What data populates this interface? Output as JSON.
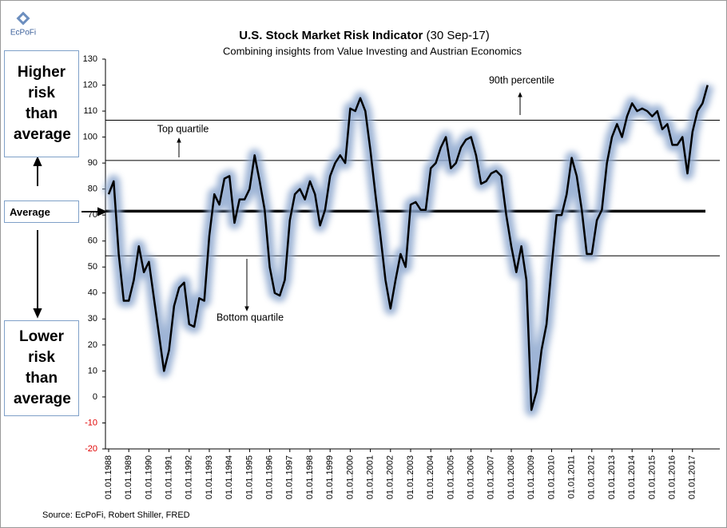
{
  "chart_data": {
    "type": "line",
    "title": "U.S. Stock Market Risk Indicator",
    "title_suffix": "(30 Sep-17)",
    "subtitle": "Combining insights from Value Investing and Austrian Economics",
    "logo": "EcPoFi",
    "source": "Source: EcPoFi,  Robert Shiller, FRED",
    "side_labels": {
      "higher": "Higher risk than average",
      "average": "Average",
      "lower": "Lower risk than average"
    },
    "x": [
      1988,
      1988.25,
      1988.5,
      1988.75,
      1989,
      1989.25,
      1989.5,
      1989.75,
      1990,
      1990.25,
      1990.5,
      1990.75,
      1991,
      1991.25,
      1991.5,
      1991.75,
      1992,
      1992.25,
      1992.5,
      1992.75,
      1993,
      1993.25,
      1993.5,
      1993.75,
      1994,
      1994.25,
      1994.5,
      1994.75,
      1995,
      1995.25,
      1995.5,
      1995.75,
      1996,
      1996.25,
      1996.5,
      1996.75,
      1997,
      1997.25,
      1997.5,
      1997.75,
      1998,
      1998.25,
      1998.5,
      1998.75,
      1999,
      1999.25,
      1999.5,
      1999.75,
      2000,
      2000.25,
      2000.5,
      2000.75,
      2001,
      2001.25,
      2001.5,
      2001.75,
      2002,
      2002.25,
      2002.5,
      2002.75,
      2003,
      2003.25,
      2003.5,
      2003.75,
      2004,
      2004.25,
      2004.5,
      2004.75,
      2005,
      2005.25,
      2005.5,
      2005.75,
      2006,
      2006.25,
      2006.5,
      2006.75,
      2007,
      2007.25,
      2007.5,
      2007.75,
      2008,
      2008.25,
      2008.5,
      2008.75,
      2009,
      2009.25,
      2009.5,
      2009.75,
      2010,
      2010.25,
      2010.5,
      2010.75,
      2011,
      2011.25,
      2011.5,
      2011.75,
      2012,
      2012.25,
      2012.5,
      2012.75,
      2013,
      2013.25,
      2013.5,
      2013.75,
      2014,
      2014.25,
      2014.5,
      2014.75,
      2015,
      2015.25,
      2015.5,
      2015.75,
      2016,
      2016.25,
      2016.5,
      2016.75,
      2017,
      2017.25,
      2017.5,
      2017.75
    ],
    "series": [
      {
        "name": "Risk indicator",
        "color": "#000000",
        "glow": "#8ea8cf",
        "values": [
          78,
          83,
          55,
          37,
          37,
          45,
          58,
          48,
          52,
          38,
          24,
          10,
          18,
          35,
          42,
          44,
          28,
          27,
          38,
          37,
          62,
          78,
          74,
          84,
          85,
          67,
          76,
          76,
          80,
          93,
          83,
          72,
          50,
          40,
          39,
          45,
          68,
          78,
          80,
          76,
          83,
          78,
          66,
          72,
          85,
          90,
          93,
          90,
          111,
          110,
          115,
          110,
          95,
          78,
          62,
          45,
          34,
          45,
          55,
          50,
          74,
          75,
          72,
          72,
          88,
          90,
          96,
          100,
          88,
          90,
          96,
          99,
          100,
          93,
          82,
          83,
          86,
          87,
          85,
          70,
          58,
          48,
          58,
          45,
          -5,
          2,
          18,
          28,
          50,
          70,
          70,
          78,
          92,
          85,
          72,
          55,
          55,
          68,
          72,
          90,
          100,
          105,
          100,
          108,
          113,
          110,
          111,
          110,
          108,
          110,
          103,
          105,
          97,
          97,
          100,
          86,
          102,
          110,
          113,
          120
        ]
      }
    ],
    "reference_lines": [
      {
        "label": "90th percentile",
        "value": 106.5
      },
      {
        "label": "Top quartile",
        "value": 91
      },
      {
        "value": 71.5
      },
      {
        "label": "Bottom quartile",
        "value": 54.3
      }
    ],
    "xlim": [
      1988,
      2018
    ],
    "xticks": [
      {
        "value": 1988,
        "label": "01.01.1988"
      },
      {
        "value": 1989,
        "label": "01.01.1989"
      },
      {
        "value": 1990,
        "label": "01.01.1990"
      },
      {
        "value": 1991,
        "label": "01.01.1991"
      },
      {
        "value": 1992,
        "label": "01.01.1992"
      },
      {
        "value": 1993,
        "label": "01.01.1993"
      },
      {
        "value": 1994,
        "label": "01.01.1994"
      },
      {
        "value": 1995,
        "label": "01.01.1995"
      },
      {
        "value": 1996,
        "label": "01.01.1996"
      },
      {
        "value": 1997,
        "label": "01.01.1997"
      },
      {
        "value": 1998,
        "label": "01.01.1998"
      },
      {
        "value": 1999,
        "label": "01.01.1999"
      },
      {
        "value": 2000,
        "label": "01.01.2000"
      },
      {
        "value": 2001,
        "label": "01.01.2001"
      },
      {
        "value": 2002,
        "label": "01.01.2002"
      },
      {
        "value": 2003,
        "label": "01.01.2003"
      },
      {
        "value": 2004,
        "label": "01.01.2004"
      },
      {
        "value": 2005,
        "label": "01.01.2005"
      },
      {
        "value": 2006,
        "label": "01.01.2006"
      },
      {
        "value": 2007,
        "label": "01.01.2007"
      },
      {
        "value": 2008,
        "label": "01.01.2008"
      },
      {
        "value": 2009,
        "label": "01.01.2009"
      },
      {
        "value": 2010,
        "label": "01.01.2010"
      },
      {
        "value": 2011,
        "label": "01.01.2011"
      },
      {
        "value": 2012,
        "label": "01.01.2012"
      },
      {
        "value": 2013,
        "label": "01.01.2013"
      },
      {
        "value": 2014,
        "label": "01.01.2014"
      },
      {
        "value": 2015,
        "label": "01.01.2015"
      },
      {
        "value": 2016,
        "label": "01.01.2016"
      },
      {
        "value": 2017,
        "label": "01.01.2017"
      }
    ],
    "ylim": [
      -20,
      130
    ],
    "yticks": [
      -20,
      -10,
      0,
      10,
      20,
      30,
      40,
      50,
      60,
      70,
      80,
      90,
      100,
      110,
      120,
      130
    ],
    "negative_tick_color": "#e00000",
    "grid": false
  }
}
